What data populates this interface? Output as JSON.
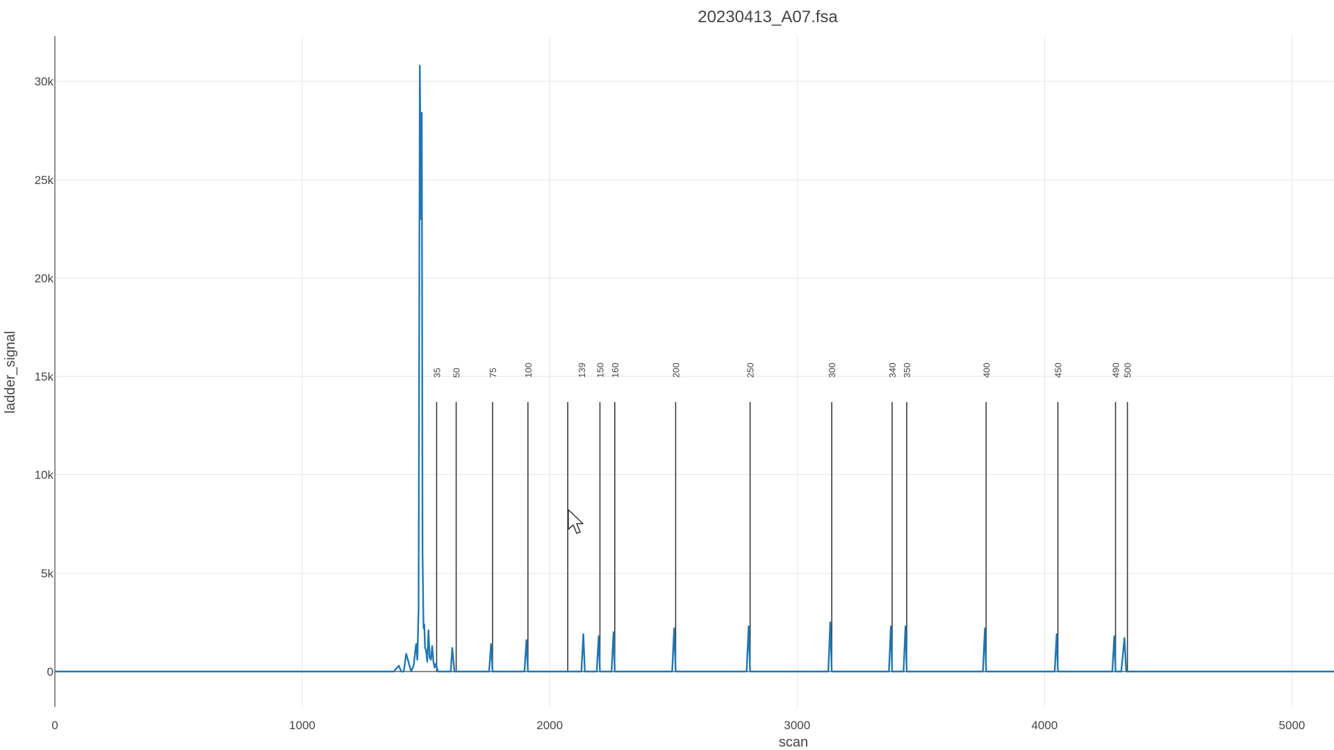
{
  "chart_data": {
    "type": "line",
    "title": "20230413_A07.fsa",
    "xlabel": "scan",
    "ylabel": "ladder_signal",
    "xlim": [
      0,
      5170
    ],
    "ylim": [
      -1800,
      32300
    ],
    "grid": true,
    "x_ticks": [
      0,
      1000,
      2000,
      3000,
      4000,
      5000
    ],
    "x_tick_labels": [
      "0",
      "1000",
      "2000",
      "3000",
      "4000",
      "5000"
    ],
    "y_ticks": [
      0,
      5000,
      10000,
      15000,
      20000,
      25000,
      30000
    ],
    "y_tick_labels": [
      "0",
      "5k",
      "10k",
      "15k",
      "20k",
      "25k",
      "30k"
    ],
    "series": [
      {
        "color": "#1f77b4",
        "x": [
          0,
          1270,
          1370,
          1390,
          1400,
          1410,
          1420,
          1440,
          1450,
          1460,
          1465,
          1470,
          1475,
          1480,
          1483,
          1486,
          1490,
          1493,
          1496,
          1500,
          1505,
          1510,
          1515,
          1520,
          1525,
          1530,
          1535,
          1540,
          1548,
          1555,
          1600,
          1606,
          1615,
          1622,
          1650,
          1755,
          1763,
          1769,
          1790,
          1898,
          1906,
          1912,
          1930,
          2128,
          2136,
          2142,
          2170,
          2190,
          2198,
          2203,
          2215,
          2250,
          2258,
          2263,
          2290,
          2495,
          2503,
          2509,
          2540,
          2796,
          2804,
          2810,
          2840,
          3126,
          3134,
          3140,
          3170,
          3371,
          3379,
          3384,
          3400,
          3430,
          3438,
          3443,
          3470,
          3751,
          3759,
          3764,
          3790,
          4041,
          4049,
          4054,
          4080,
          4274,
          4282,
          4287,
          4310,
          4323,
          4330,
          4350,
          4370,
          5170
        ],
        "y": [
          0,
          0,
          0,
          300,
          0,
          0,
          900,
          0,
          300,
          1400,
          600,
          3200,
          30800,
          23000,
          28400,
          6000,
          2200,
          2400,
          1200,
          1100,
          500,
          2100,
          700,
          600,
          1300,
          500,
          200,
          400,
          0,
          0,
          0,
          1200,
          0,
          0,
          0,
          0,
          1400,
          0,
          0,
          0,
          1600,
          0,
          0,
          0,
          1900,
          0,
          0,
          0,
          1800,
          0,
          0,
          0,
          2000,
          0,
          0,
          0,
          2200,
          0,
          0,
          0,
          2300,
          0,
          0,
          0,
          2500,
          0,
          0,
          0,
          2300,
          0,
          0,
          0,
          2300,
          0,
          0,
          0,
          2200,
          0,
          0,
          0,
          1900,
          0,
          0,
          0,
          1800,
          0,
          0,
          1700,
          0,
          0,
          0,
          0
        ]
      }
    ],
    "ladder_markers": {
      "line_top_value": 13700,
      "scans": [
        1543,
        1622,
        1769,
        1912,
        2073,
        2203,
        2263,
        2509,
        2810,
        3140,
        3384,
        3443,
        3764,
        4054,
        4287,
        4335
      ],
      "labels": [
        "35",
        "50",
        "75",
        "100",
        "139",
        "150",
        "160",
        "200",
        "250",
        "300",
        "340",
        "350",
        "400",
        "450",
        "490",
        "500"
      ],
      "label_positions": [
        1543,
        1622,
        1769,
        1912,
        2128,
        2203,
        2263,
        2509,
        2810,
        3140,
        3384,
        3443,
        3764,
        4054,
        4287,
        4335
      ]
    }
  }
}
